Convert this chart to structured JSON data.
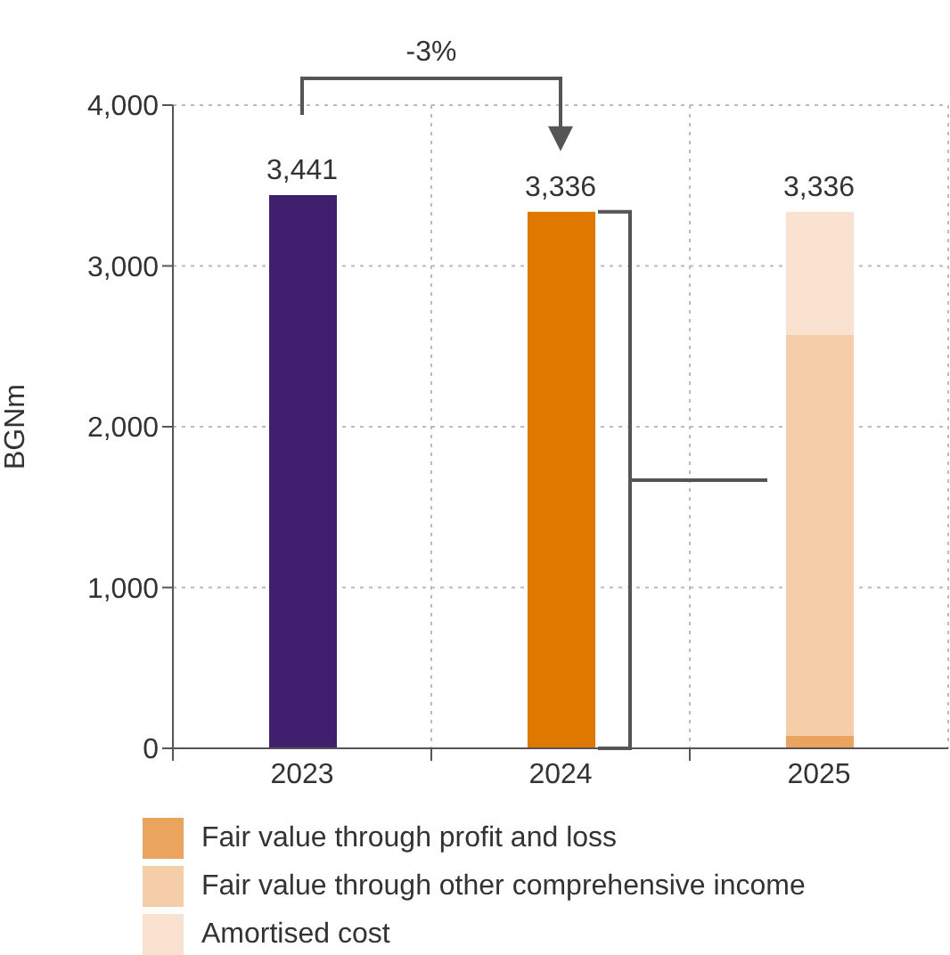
{
  "chart_data": {
    "type": "bar",
    "ylabel": "BGNm",
    "categories": [
      "2023",
      "2024",
      "2025"
    ],
    "stacked": true,
    "series": [
      {
        "colors": [
          "#3f1f6e",
          "#e07800",
          null
        ],
        "values": [
          3441,
          3336,
          null
        ]
      },
      {
        "name": "Fair value through profit and loss",
        "color": "#eba45e",
        "values": [
          null,
          null,
          80
        ]
      },
      {
        "name": "Fair value through other comprehensive income",
        "color": "#f5cea9",
        "values": [
          null,
          null,
          2490
        ]
      },
      {
        "name": "Amortised cost",
        "color": "#f9e2cf",
        "values": [
          null,
          null,
          766
        ]
      }
    ],
    "totals": [
      "3,441",
      "3,336",
      "3,336"
    ],
    "annotations": [
      "-3%"
    ],
    "ylim": [
      0,
      4000
    ],
    "yticks": [
      0,
      {
        "value": 1000,
        "label": "1,000"
      },
      {
        "value": 2000,
        "label": "2,000"
      },
      {
        "value": 3000,
        "label": "3,000"
      },
      {
        "value": 4000,
        "label": "4,000"
      }
    ],
    "grid": true,
    "legend": "bottom"
  }
}
